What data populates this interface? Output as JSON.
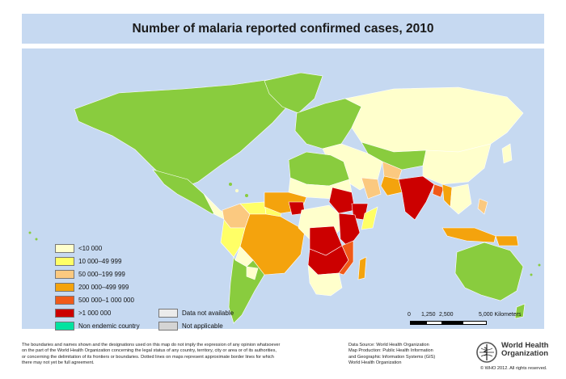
{
  "title": "Number of malaria reported confirmed cases, 2010",
  "legend": {
    "items": [
      {
        "label": "<10 000",
        "color": "#ffffcc"
      },
      {
        "label": "10 000–49 999",
        "color": "#ffff66"
      },
      {
        "label": "50 000–199 999",
        "color": "#fbc980"
      },
      {
        "label": "200 000–499 999",
        "color": "#f4a30d"
      },
      {
        "label": "500 000–1 000 000",
        "color": "#f05a19"
      },
      {
        "label": ">1 000 000",
        "color": "#cc0000"
      },
      {
        "label": "Non endemic country",
        "color": "#00e3a0"
      }
    ],
    "extra": [
      {
        "label": "Data not available",
        "color": "#ebebeb"
      },
      {
        "label": "Not applicable",
        "color": "#d4d4d4"
      }
    ]
  },
  "scale": {
    "ticks": [
      "0",
      "1,250",
      "2,500",
      "5,000 Kilometers"
    ]
  },
  "colors": {
    "ocean": "#c6d9f1",
    "non_endemic_land": "#89cc3e",
    "unclassified_land": "#ffffcc"
  },
  "footer": {
    "disclaimer": [
      "The boundaries and names shown and the designations used on this map do not imply the expression of any opinion whatsoever",
      "on the part of the World Health Organization concerning the legal status of any country, territory, city or area or of its authorities,",
      "or concerning the delimitation of its frontiers or boundaries.  Dotted lines on maps represent approximate border lines for which",
      "there may not yet be full agreement."
    ],
    "source": [
      "Data Source: World Health Organization",
      "Map Production: Public Health Information",
      "and Geographic Information Systems (GIS)",
      "World Health Organization"
    ]
  },
  "who": {
    "org_line1": "World Health",
    "org_line2": "Organization",
    "copyright": "© WHO 2012. All rights reserved.",
    "logo_icon": "who-emblem-icon"
  }
}
